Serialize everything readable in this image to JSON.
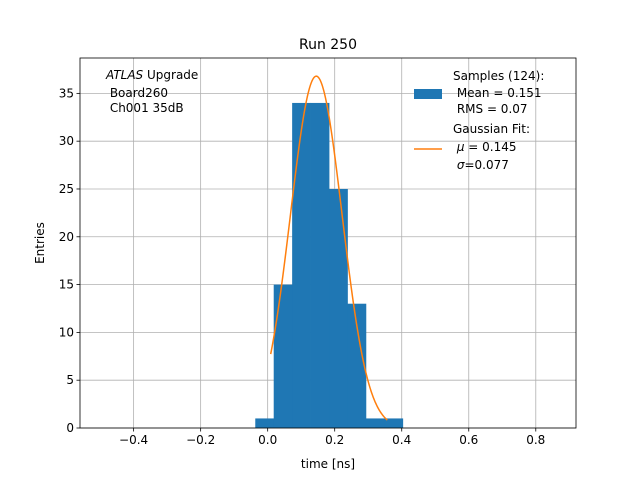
{
  "chart_data": {
    "type": "bar",
    "title": "Run 250",
    "xlabel": "time [ns]",
    "ylabel": "Entries",
    "xlim": [
      -0.56,
      0.92
    ],
    "ylim": [
      0,
      38.7
    ],
    "xticks": [
      -0.4,
      -0.2,
      0.0,
      0.2,
      0.4,
      0.6,
      0.8
    ],
    "xtick_labels": [
      "−0.4",
      "−0.2",
      "0.0",
      "0.2",
      "0.4",
      "0.6",
      "0.8"
    ],
    "yticks": [
      0,
      5,
      10,
      15,
      20,
      25,
      30,
      35
    ],
    "ytick_labels": [
      "0",
      "5",
      "10",
      "15",
      "20",
      "25",
      "30",
      "35"
    ],
    "grid": true,
    "histogram": {
      "name": "Samples",
      "bin_edges": [
        -0.037,
        0.018,
        0.073,
        0.128,
        0.183,
        0.238,
        0.293,
        0.348,
        0.403
      ],
      "counts": [
        1,
        15,
        34,
        34,
        25,
        13,
        1,
        1
      ],
      "color": "#1f77b4"
    },
    "fit": {
      "name": "Gaussian Fit",
      "type": "gaussian",
      "amplitude": 36.8,
      "mu": 0.145,
      "sigma": 0.077,
      "x_range": [
        0.009,
        0.357
      ],
      "color": "#ff7f0e"
    },
    "annotation": {
      "italic": "ATLAS",
      "line1_rest": " Upgrade",
      "line2": " Board260",
      "line3": " Ch001 35dB"
    },
    "legend": {
      "position": "top-right",
      "samples_lines": [
        "Samples (124):",
        " Mean = 0.151",
        " RMS = 0.07"
      ],
      "fit_title": "Gaussian Fit:",
      "fit_mu_symbol": "μ",
      "fit_mu_value": " = 0.145",
      "fit_sigma_symbol": "σ",
      "fit_sigma_value": "=0.077"
    }
  }
}
